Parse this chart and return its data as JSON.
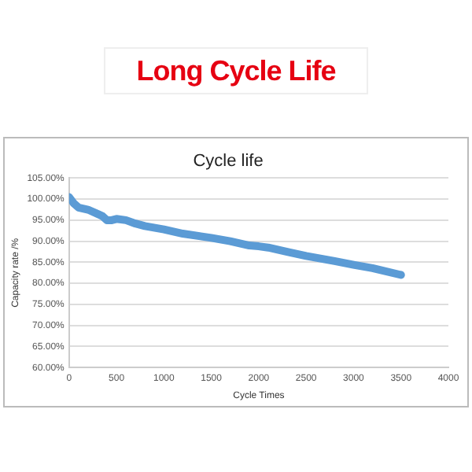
{
  "chart_data": {
    "type": "line",
    "title": "Long Cycle Life",
    "subtitle": "Cycle life",
    "xlabel": "Cycle Times",
    "ylabel": "Capacity rate /%",
    "x": [
      0,
      50,
      100,
      200,
      300,
      350,
      400,
      450,
      500,
      600,
      700,
      800,
      1000,
      1200,
      1500,
      1700,
      1900,
      2000,
      2100,
      2300,
      2500,
      2800,
      3000,
      3200,
      3500
    ],
    "series": [
      {
        "color": "#5b9bd5",
        "values": [
          100.5,
          99,
          98,
          97.5,
          96.5,
          96,
          95,
          95,
          95.3,
          95,
          94.2,
          93.6,
          92.8,
          91.8,
          90.8,
          90,
          89,
          88.8,
          88.5,
          87.5,
          86.5,
          85.3,
          84.4,
          83.6,
          82
        ]
      }
    ],
    "xlim": [
      0,
      4000
    ],
    "xticks": [
      0,
      500,
      1000,
      1500,
      2000,
      2500,
      3000,
      3500,
      4000
    ],
    "ylim": [
      60,
      105
    ],
    "yticks": [
      {
        "value": 60,
        "label": "60.00%"
      },
      {
        "value": 65,
        "label": "65.00%"
      },
      {
        "value": 70,
        "label": "70.00%"
      },
      {
        "value": 75,
        "label": "75.00%"
      },
      {
        "value": 80,
        "label": "80.00%"
      },
      {
        "value": 85,
        "label": "85.00%"
      },
      {
        "value": 90,
        "label": "90.00%"
      },
      {
        "value": 95,
        "label": "95.00%"
      },
      {
        "value": 100,
        "label": "100.00%"
      },
      {
        "value": 105,
        "label": "105.00%"
      }
    ],
    "grid": "y",
    "legend": false,
    "marker": "none",
    "line_style": "solid"
  }
}
